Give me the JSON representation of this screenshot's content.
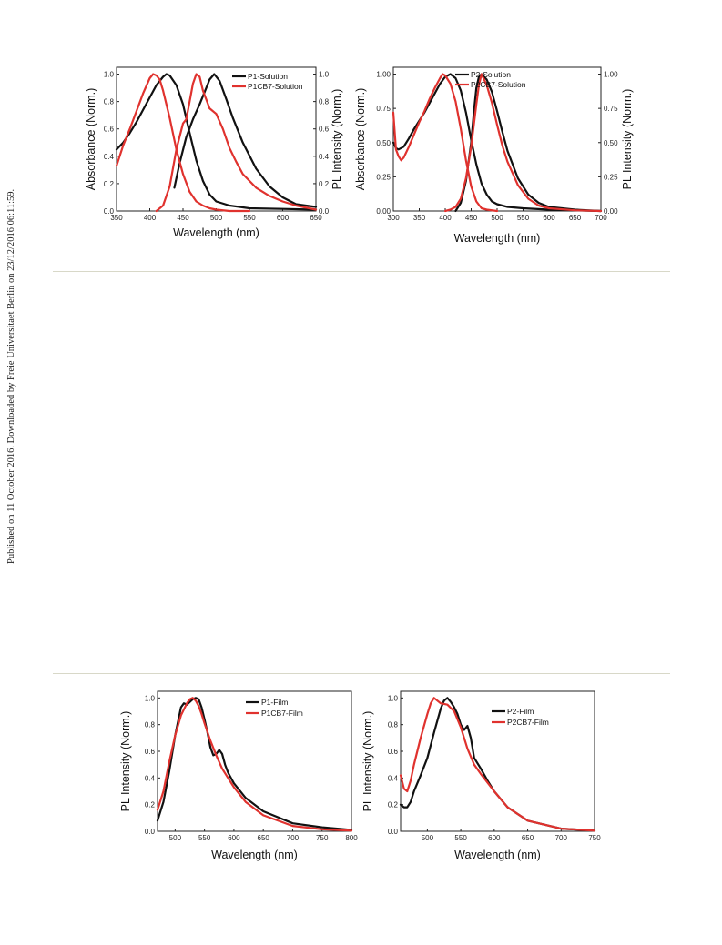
{
  "side_note": "Published on 11 October 2016. Downloaded by Freie Universitaet Berlin on 23/12/2016 06:11:59.",
  "colors": {
    "black_series": "#111111",
    "red_series": "#e0322e",
    "divider": "#d8d8c8"
  },
  "chart_data": [
    {
      "type": "line",
      "xlabel": "Wavelength (nm)",
      "ylabel": "Absorbance (Norm.)",
      "y2label": "PL Intensity (Norm.)",
      "xlim": [
        350,
        650
      ],
      "ylim": [
        0,
        1.05
      ],
      "xticks": [
        "350",
        "400",
        "450",
        "500",
        "550",
        "600",
        "650"
      ],
      "yticks": [
        "0.0",
        "0.2",
        "0.4",
        "0.6",
        "0.8",
        "1.0"
      ],
      "y2ticks": [
        "0.0",
        "0.2",
        "0.4",
        "0.6",
        "0.8",
        "1.0"
      ],
      "legend_position": "top-right",
      "legend": [
        "P1-Solution",
        "P1CB7-Solution"
      ],
      "series": [
        {
          "name": "P1-Solution",
          "kind": "absorbance",
          "color": "black",
          "x": [
            350,
            360,
            370,
            380,
            390,
            400,
            410,
            420,
            425,
            430,
            440,
            450,
            460,
            470,
            480,
            490,
            500,
            520,
            550,
            600,
            650
          ],
          "y": [
            0.45,
            0.5,
            0.57,
            0.65,
            0.74,
            0.83,
            0.92,
            0.98,
            1.0,
            0.99,
            0.92,
            0.78,
            0.57,
            0.37,
            0.22,
            0.12,
            0.07,
            0.04,
            0.02,
            0.015,
            0.01
          ]
        },
        {
          "name": "P1-Solution",
          "kind": "emission",
          "color": "black",
          "x": [
            437,
            445,
            455,
            465,
            475,
            485,
            490,
            497,
            505,
            515,
            525,
            540,
            560,
            580,
            600,
            620,
            650
          ],
          "y": [
            0.17,
            0.35,
            0.54,
            0.67,
            0.78,
            0.9,
            0.96,
            1.0,
            0.95,
            0.82,
            0.68,
            0.5,
            0.31,
            0.18,
            0.1,
            0.05,
            0.03
          ]
        },
        {
          "name": "P1CB7-Solution",
          "kind": "absorbance",
          "color": "red",
          "x": [
            350,
            360,
            370,
            380,
            390,
            400,
            405,
            410,
            415,
            420,
            430,
            440,
            450,
            460,
            470,
            480,
            490,
            500,
            520,
            550
          ],
          "y": [
            0.33,
            0.48,
            0.6,
            0.73,
            0.86,
            0.97,
            1.0,
            0.99,
            0.96,
            0.88,
            0.68,
            0.45,
            0.27,
            0.14,
            0.07,
            0.04,
            0.02,
            0.01,
            0.0,
            0.0
          ]
        },
        {
          "name": "P1CB7-Solution",
          "kind": "emission",
          "color": "red",
          "x": [
            410,
            420,
            430,
            440,
            450,
            455,
            460,
            465,
            470,
            475,
            480,
            490,
            500,
            510,
            520,
            530,
            540,
            560,
            580,
            600,
            620,
            650
          ],
          "y": [
            0.0,
            0.04,
            0.18,
            0.45,
            0.64,
            0.67,
            0.8,
            0.93,
            1.0,
            0.98,
            0.88,
            0.75,
            0.71,
            0.6,
            0.46,
            0.36,
            0.27,
            0.17,
            0.11,
            0.07,
            0.04,
            0.01
          ]
        }
      ]
    },
    {
      "type": "line",
      "xlabel": "Wavelength (nm)",
      "ylabel": "Absorbance (Norm.)",
      "y2label": "PL Intensity (Norm.)",
      "xlim": [
        300,
        700
      ],
      "ylim": [
        0,
        1.05
      ],
      "xticks": [
        "300",
        "350",
        "400",
        "450",
        "500",
        "550",
        "600",
        "650",
        "700"
      ],
      "yticks": [
        "0.00",
        "0.25",
        "0.50",
        "0.75",
        "1.00"
      ],
      "y2ticks": [
        "0.00",
        "0.25",
        "0.50",
        "0.75",
        "1.00"
      ],
      "legend_position": "top-right",
      "legend": [
        "P2-Solution",
        "P2CB7-Solution"
      ],
      "series": [
        {
          "name": "P2-Solution",
          "kind": "absorbance",
          "color": "black",
          "x": [
            300,
            305,
            310,
            320,
            330,
            340,
            350,
            360,
            370,
            380,
            390,
            400,
            410,
            420,
            430,
            440,
            450,
            460,
            470,
            480,
            490,
            500,
            520,
            550,
            600,
            700
          ],
          "y": [
            0.5,
            0.46,
            0.45,
            0.47,
            0.53,
            0.6,
            0.66,
            0.72,
            0.79,
            0.86,
            0.93,
            0.98,
            1.0,
            0.97,
            0.88,
            0.72,
            0.52,
            0.34,
            0.2,
            0.12,
            0.07,
            0.05,
            0.03,
            0.02,
            0.01,
            0.0
          ]
        },
        {
          "name": "P2-Solution",
          "kind": "emission",
          "color": "black",
          "x": [
            420,
            430,
            440,
            450,
            455,
            460,
            465,
            470,
            475,
            480,
            490,
            500,
            510,
            520,
            540,
            560,
            580,
            600,
            650,
            700
          ],
          "y": [
            0.0,
            0.06,
            0.22,
            0.5,
            0.72,
            0.9,
            0.98,
            1.0,
            0.98,
            0.96,
            0.87,
            0.73,
            0.58,
            0.44,
            0.24,
            0.12,
            0.06,
            0.03,
            0.01,
            0.0
          ]
        },
        {
          "name": "P2CB7-Solution",
          "kind": "absorbance",
          "color": "red",
          "x": [
            300,
            305,
            310,
            315,
            320,
            330,
            340,
            350,
            360,
            370,
            380,
            390,
            395,
            400,
            410,
            420,
            430,
            440,
            450,
            460,
            470,
            480,
            500
          ],
          "y": [
            0.72,
            0.45,
            0.4,
            0.37,
            0.39,
            0.47,
            0.56,
            0.65,
            0.73,
            0.82,
            0.9,
            0.97,
            1.0,
            0.99,
            0.93,
            0.8,
            0.6,
            0.37,
            0.18,
            0.07,
            0.02,
            0.01,
            0.0
          ]
        },
        {
          "name": "P2CB7-Solution",
          "kind": "emission",
          "color": "red",
          "x": [
            400,
            410,
            420,
            430,
            440,
            450,
            460,
            465,
            470,
            480,
            490,
            500,
            510,
            520,
            540,
            560,
            580,
            600,
            650,
            700
          ],
          "y": [
            0.0,
            0.01,
            0.03,
            0.09,
            0.24,
            0.47,
            0.78,
            0.92,
            1.0,
            0.92,
            0.79,
            0.63,
            0.48,
            0.36,
            0.19,
            0.09,
            0.04,
            0.02,
            0.005,
            0.0
          ]
        }
      ]
    },
    {
      "type": "line",
      "xlabel": "Wavelength (nm)",
      "ylabel": "PL Intensity (Norm.)",
      "xlim": [
        470,
        800
      ],
      "ylim": [
        0,
        1.05
      ],
      "xticks": [
        "500",
        "550",
        "600",
        "650",
        "700",
        "750",
        "800"
      ],
      "yticks": [
        "0.0",
        "0.2",
        "0.4",
        "0.6",
        "0.8",
        "1.0"
      ],
      "legend_position": "top-right",
      "legend": [
        "P1-Film",
        "P1CB7-Film"
      ],
      "series": [
        {
          "name": "P1-Film",
          "kind": "emission",
          "color": "black",
          "x": [
            470,
            480,
            490,
            500,
            510,
            515,
            520,
            525,
            530,
            535,
            540,
            545,
            550,
            555,
            560,
            565,
            570,
            575,
            580,
            585,
            590,
            600,
            620,
            650,
            700,
            750,
            800
          ],
          "y": [
            0.08,
            0.22,
            0.45,
            0.72,
            0.93,
            0.96,
            0.95,
            0.97,
            0.99,
            1.0,
            0.99,
            0.93,
            0.84,
            0.74,
            0.63,
            0.57,
            0.58,
            0.61,
            0.58,
            0.5,
            0.44,
            0.36,
            0.25,
            0.15,
            0.06,
            0.03,
            0.01
          ]
        },
        {
          "name": "P1CB7-Film",
          "kind": "emission",
          "color": "red",
          "x": [
            470,
            480,
            490,
            500,
            510,
            520,
            525,
            530,
            535,
            540,
            545,
            550,
            560,
            570,
            580,
            600,
            620,
            650,
            700,
            750,
            800
          ],
          "y": [
            0.16,
            0.3,
            0.52,
            0.72,
            0.87,
            0.96,
            0.99,
            1.0,
            0.98,
            0.94,
            0.88,
            0.81,
            0.68,
            0.57,
            0.47,
            0.33,
            0.22,
            0.12,
            0.04,
            0.015,
            0.005
          ]
        }
      ]
    },
    {
      "type": "line",
      "xlabel": "Wavelength (nm)",
      "ylabel": "PL Intensity (Norm.)",
      "xlim": [
        460,
        750
      ],
      "ylim": [
        0,
        1.05
      ],
      "xticks": [
        "500",
        "550",
        "600",
        "650",
        "700",
        "750"
      ],
      "yticks": [
        "0.0",
        "0.2",
        "0.4",
        "0.6",
        "0.8",
        "1.0"
      ],
      "legend_position": "top-right",
      "legend": [
        "P2-Film",
        "P2CB7-Film"
      ],
      "series": [
        {
          "name": "P2-Film",
          "kind": "emission",
          "color": "black",
          "x": [
            460,
            465,
            470,
            475,
            480,
            490,
            500,
            510,
            520,
            525,
            530,
            535,
            540,
            545,
            550,
            555,
            560,
            565,
            570,
            580,
            590,
            600,
            620,
            650,
            700,
            750
          ],
          "y": [
            0.2,
            0.18,
            0.18,
            0.22,
            0.3,
            0.42,
            0.55,
            0.74,
            0.92,
            0.98,
            1.0,
            0.97,
            0.93,
            0.88,
            0.8,
            0.76,
            0.79,
            0.7,
            0.55,
            0.47,
            0.38,
            0.3,
            0.18,
            0.08,
            0.02,
            0.005
          ]
        },
        {
          "name": "P2CB7-Film",
          "kind": "emission",
          "color": "red",
          "x": [
            460,
            465,
            470,
            475,
            480,
            490,
            500,
            505,
            510,
            515,
            520,
            530,
            540,
            550,
            560,
            570,
            580,
            600,
            620,
            650,
            700,
            750
          ],
          "y": [
            0.42,
            0.32,
            0.3,
            0.38,
            0.5,
            0.7,
            0.88,
            0.96,
            1.0,
            0.98,
            0.96,
            0.95,
            0.9,
            0.78,
            0.62,
            0.5,
            0.43,
            0.3,
            0.18,
            0.08,
            0.02,
            0.005
          ]
        }
      ]
    }
  ]
}
